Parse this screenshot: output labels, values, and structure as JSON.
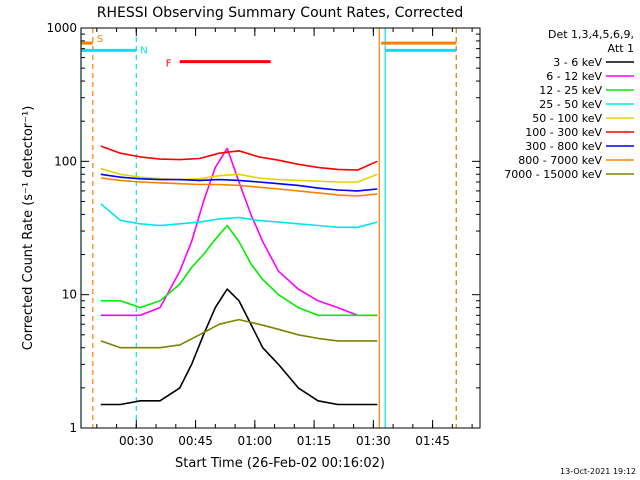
{
  "chart_data": {
    "type": "line",
    "title": "RHESSI Observing Summary Count Rates, Corrected",
    "xlabel": "Start Time (26-Feb-02 00:16:02)",
    "ylabel": "Corrected Count Rate (s⁻¹ detector⁻¹)",
    "timestamp": "13-Oct-2021 19:12",
    "x_unit": "minutes after 00:16:02 UT",
    "xlim": [
      0,
      101
    ],
    "ylim": [
      1,
      1000
    ],
    "log_y": true,
    "x_ticks": [
      {
        "label": "00:30",
        "x": 14
      },
      {
        "label": "00:45",
        "x": 29
      },
      {
        "label": "01:00",
        "x": 44
      },
      {
        "label": "01:15",
        "x": 59
      },
      {
        "label": "01:30",
        "x": 74
      },
      {
        "label": "01:45",
        "x": 89
      }
    ],
    "y_ticks": [
      {
        "label": "1",
        "y": 1
      },
      {
        "label": "10",
        "y": 10
      },
      {
        "label": "100",
        "y": 100
      },
      {
        "label": "1000",
        "y": 1000
      }
    ],
    "legend": {
      "placement": "right",
      "header": [
        "Det 1,3,4,5,6,9,",
        "Att 1"
      ],
      "entries": [
        {
          "label": "3 - 6 keV",
          "color": "#000000"
        },
        {
          "label": "6 - 12 keV",
          "color": "#ff00ff"
        },
        {
          "label": "12 - 25 keV",
          "color": "#00ee00"
        },
        {
          "label": "25 - 50 keV",
          "color": "#00e5ee"
        },
        {
          "label": "50 - 100 keV",
          "color": "#e6d200"
        },
        {
          "label": "100 - 300 keV",
          "color": "#ff0000"
        },
        {
          "label": "300 - 800 keV",
          "color": "#0000ff"
        },
        {
          "label": "800 - 7000 keV",
          "color": "#ff8000"
        },
        {
          "label": "7000 - 15000 keV",
          "color": "#808000"
        }
      ]
    },
    "flags": [
      {
        "label": "S",
        "color": "#ff8000",
        "x": [
          0,
          3
        ],
        "y": 770
      },
      {
        "label": "N",
        "color": "#00e5ee",
        "x": [
          0,
          14
        ],
        "y": 680
      },
      {
        "label": "F",
        "color": "#ff0000",
        "x": [
          25,
          48
        ],
        "y": 560
      },
      {
        "label": "",
        "color": "#ff8000",
        "x": [
          76,
          95
        ],
        "y": 770
      },
      {
        "label": "",
        "color": "#00e5ee",
        "x": [
          77,
          95
        ],
        "y": 680
      }
    ],
    "verticals": [
      {
        "x": 0,
        "color": "#00e5ee",
        "dash": false
      },
      {
        "x": 3,
        "color": "#ff8000",
        "dash": true
      },
      {
        "x": 14,
        "color": "#00e5ee",
        "dash": true
      },
      {
        "x": 75.5,
        "color": "#ff8000",
        "dash": false
      },
      {
        "x": 77,
        "color": "#00e5ee",
        "dash": false
      },
      {
        "x": 95,
        "color": "#00e5ee",
        "dash": true
      },
      {
        "x": 95,
        "color": "#ff8000",
        "dash": true
      }
    ],
    "series": [
      {
        "name": "3 - 6 keV",
        "color": "#000000",
        "x": [
          5,
          10,
          15,
          20,
          25,
          28,
          31,
          34,
          37,
          40,
          43,
          46,
          50,
          55,
          60,
          65,
          70,
          75
        ],
        "y": [
          1.5,
          1.5,
          1.6,
          1.6,
          2,
          3,
          5,
          8,
          11,
          9,
          6,
          4,
          3,
          2,
          1.6,
          1.5,
          1.5,
          1.5
        ]
      },
      {
        "name": "6 - 12 keV",
        "color": "#ff00ff",
        "x": [
          5,
          10,
          15,
          20,
          25,
          28,
          31,
          34,
          37,
          40,
          43,
          46,
          50,
          55,
          60,
          65,
          70,
          75
        ],
        "y": [
          7,
          7,
          7,
          8,
          15,
          25,
          50,
          90,
          125,
          70,
          40,
          25,
          15,
          11,
          9,
          8,
          7,
          7
        ]
      },
      {
        "name": "12 - 25 keV",
        "color": "#00ee00",
        "x": [
          5,
          10,
          15,
          20,
          25,
          28,
          31,
          34,
          37,
          40,
          43,
          46,
          50,
          55,
          60,
          65,
          70,
          75
        ],
        "y": [
          9,
          9,
          8,
          9,
          12,
          16,
          20,
          26,
          33,
          25,
          17,
          13,
          10,
          8,
          7,
          7,
          7,
          7
        ]
      },
      {
        "name": "25 - 50 keV",
        "color": "#00e5ee",
        "x": [
          5,
          10,
          15,
          20,
          25,
          30,
          35,
          40,
          45,
          50,
          55,
          60,
          65,
          70,
          75
        ],
        "y": [
          48,
          36,
          34,
          33,
          34,
          35,
          37,
          38,
          36,
          35,
          34,
          33,
          32,
          32,
          35
        ]
      },
      {
        "name": "50 - 100 keV",
        "color": "#e6d200",
        "x": [
          5,
          10,
          15,
          20,
          25,
          30,
          35,
          40,
          45,
          50,
          55,
          60,
          65,
          70,
          75
        ],
        "y": [
          88,
          80,
          76,
          74,
          73,
          74,
          78,
          80,
          75,
          73,
          72,
          71,
          70,
          70,
          80
        ]
      },
      {
        "name": "100 - 300 keV",
        "color": "#ff0000",
        "x": [
          5,
          10,
          15,
          20,
          25,
          30,
          35,
          40,
          45,
          50,
          55,
          60,
          65,
          70,
          75
        ],
        "y": [
          130,
          115,
          108,
          104,
          103,
          105,
          115,
          120,
          108,
          102,
          95,
          90,
          87,
          86,
          100
        ]
      },
      {
        "name": "300 - 800 keV",
        "color": "#0000ff",
        "x": [
          5,
          10,
          15,
          20,
          25,
          30,
          35,
          40,
          45,
          50,
          55,
          60,
          65,
          70,
          75
        ],
        "y": [
          80,
          76,
          74,
          73,
          73,
          72,
          73,
          72,
          70,
          68,
          66,
          63,
          61,
          60,
          62
        ]
      },
      {
        "name": "800 - 7000 keV",
        "color": "#ff8000",
        "x": [
          5,
          10,
          15,
          20,
          25,
          30,
          35,
          40,
          45,
          50,
          55,
          60,
          65,
          70,
          75
        ],
        "y": [
          75,
          72,
          70,
          69,
          68,
          67,
          67,
          66,
          64,
          62,
          60,
          58,
          56,
          55,
          57
        ]
      },
      {
        "name": "7000 - 15000 keV",
        "color": "#808000",
        "x": [
          5,
          10,
          15,
          20,
          25,
          30,
          35,
          40,
          45,
          50,
          55,
          60,
          65,
          70,
          75
        ],
        "y": [
          4.5,
          4,
          4,
          4,
          4.2,
          5,
          6,
          6.5,
          6,
          5.5,
          5,
          4.7,
          4.5,
          4.5,
          4.5
        ]
      }
    ]
  }
}
